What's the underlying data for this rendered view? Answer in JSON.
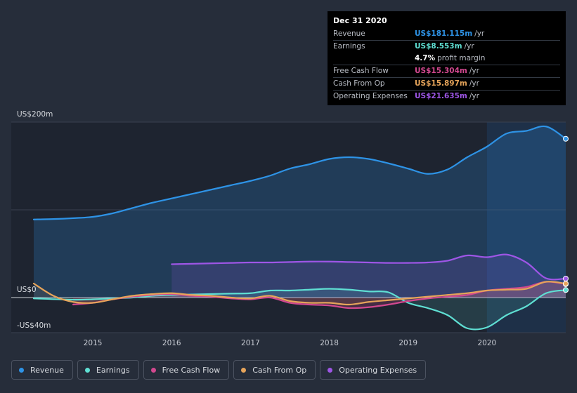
{
  "chart_data": {
    "type": "area",
    "x_range": [
      2014.25,
      2021.0
    ],
    "ylim": [
      -40,
      200
    ],
    "y_tick_labels": [
      {
        "value": 200,
        "label": "US$200m"
      },
      {
        "value": 0,
        "label": "US$0"
      },
      {
        "value": -40,
        "label": "-US$40m"
      }
    ],
    "x_tick_labels": [
      {
        "value": 2015,
        "label": "2015"
      },
      {
        "value": 2016,
        "label": "2016"
      },
      {
        "value": 2017,
        "label": "2017"
      },
      {
        "value": 2018,
        "label": "2018"
      },
      {
        "value": 2019,
        "label": "2019"
      },
      {
        "value": 2020,
        "label": "2020"
      }
    ],
    "highlight_start": 2020.0,
    "series": [
      {
        "name": "Revenue",
        "color": "#2e93e6",
        "x": [
          2014.25,
          2014.5,
          2014.75,
          2015.0,
          2015.25,
          2015.5,
          2015.75,
          2016.0,
          2016.25,
          2016.5,
          2016.75,
          2017.0,
          2017.25,
          2017.5,
          2017.75,
          2018.0,
          2018.25,
          2018.5,
          2018.75,
          2019.0,
          2019.25,
          2019.5,
          2019.75,
          2020.0,
          2020.25,
          2020.5,
          2020.75,
          2021.0
        ],
        "values": [
          89,
          89.5,
          90.5,
          92,
          96,
          102,
          108,
          113,
          118,
          123,
          128,
          133,
          139,
          147,
          152,
          158,
          160,
          158,
          153,
          147,
          141,
          146,
          160,
          172,
          187,
          190,
          195,
          181
        ]
      },
      {
        "name": "Earnings",
        "color": "#5fdfd3",
        "x": [
          2014.25,
          2014.75,
          2015.0,
          2015.25,
          2015.5,
          2015.75,
          2016.0,
          2016.25,
          2016.5,
          2016.75,
          2017.0,
          2017.25,
          2017.5,
          2017.75,
          2018.0,
          2018.25,
          2018.5,
          2018.75,
          2019.0,
          2019.25,
          2019.5,
          2019.75,
          2020.0,
          2020.25,
          2020.5,
          2020.75,
          2021.0
        ],
        "values": [
          -1,
          -2.5,
          -2,
          -1,
          0,
          2,
          3,
          3.5,
          4,
          4.5,
          5,
          8,
          8,
          9,
          10,
          9,
          7,
          6,
          -6,
          -12,
          -20,
          -35,
          -34,
          -20,
          -10,
          5,
          8.553
        ]
      },
      {
        "name": "Free Cash Flow",
        "color": "#d2488f",
        "x": [
          2014.75,
          2015.0,
          2015.25,
          2015.5,
          2015.75,
          2016.0,
          2016.25,
          2016.5,
          2016.75,
          2017.0,
          2017.25,
          2017.5,
          2017.75,
          2018.0,
          2018.25,
          2018.5,
          2018.75,
          2019.0,
          2019.25,
          2019.5,
          2019.75,
          2020.0,
          2020.25,
          2020.5,
          2020.75,
          2021.0
        ],
        "values": [
          -8,
          -6,
          -2,
          1,
          3,
          4,
          2,
          1,
          -1,
          -2,
          0,
          -6,
          -8,
          -9,
          -12,
          -11,
          -8,
          -4,
          -1,
          1,
          3,
          8,
          10,
          12,
          18,
          15.304
        ]
      },
      {
        "name": "Cash From Op",
        "color": "#e6a45a",
        "x": [
          2014.25,
          2014.5,
          2014.75,
          2015.0,
          2015.25,
          2015.5,
          2015.75,
          2016.0,
          2016.25,
          2016.5,
          2016.75,
          2017.0,
          2017.25,
          2017.5,
          2017.75,
          2018.0,
          2018.25,
          2018.5,
          2018.75,
          2019.0,
          2019.25,
          2019.5,
          2019.75,
          2020.0,
          2020.25,
          2020.5,
          2020.75,
          2021.0
        ],
        "values": [
          16,
          2,
          -5,
          -6,
          -2,
          2,
          4,
          5,
          3,
          2,
          0,
          -1,
          2,
          -4,
          -6,
          -6,
          -8,
          -5,
          -3,
          -1,
          1,
          3,
          5,
          8,
          9,
          10,
          18,
          15.897
        ]
      },
      {
        "name": "Operating Expenses",
        "color": "#9e56e6",
        "x": [
          2016.0,
          2016.25,
          2016.5,
          2016.75,
          2017.0,
          2017.25,
          2017.5,
          2017.75,
          2018.0,
          2018.25,
          2018.5,
          2018.75,
          2019.0,
          2019.25,
          2019.5,
          2019.75,
          2020.0,
          2020.25,
          2020.5,
          2020.75,
          2021.0
        ],
        "values": [
          38,
          38.5,
          39,
          39.5,
          40,
          40,
          40.5,
          41,
          41,
          40.5,
          40,
          39.5,
          39.5,
          40,
          42,
          48,
          46,
          49,
          40,
          22,
          21.635
        ]
      }
    ]
  },
  "tooltip": {
    "title": "Dec 31 2020",
    "rows": [
      {
        "label": "Revenue",
        "value": "US$181.115m",
        "unit": "/yr",
        "color": "#2e93e6"
      },
      {
        "label": "Earnings",
        "value": "US$8.553m",
        "unit": "/yr",
        "color": "#5fdfd3"
      },
      {
        "label": "",
        "value": "4.7%",
        "unit": "profit margin",
        "color": "#ffffff"
      },
      {
        "label": "Free Cash Flow",
        "value": "US$15.304m",
        "unit": "/yr",
        "color": "#d2488f"
      },
      {
        "label": "Cash From Op",
        "value": "US$15.897m",
        "unit": "/yr",
        "color": "#e6a45a"
      },
      {
        "label": "Operating Expenses",
        "value": "US$21.635m",
        "unit": "/yr",
        "color": "#9e56e6"
      }
    ]
  },
  "legend": [
    {
      "label": "Revenue",
      "color": "#2e93e6"
    },
    {
      "label": "Earnings",
      "color": "#5fdfd3"
    },
    {
      "label": "Free Cash Flow",
      "color": "#d2488f"
    },
    {
      "label": "Cash From Op",
      "color": "#e6a45a"
    },
    {
      "label": "Operating Expenses",
      "color": "#9e56e6"
    }
  ]
}
